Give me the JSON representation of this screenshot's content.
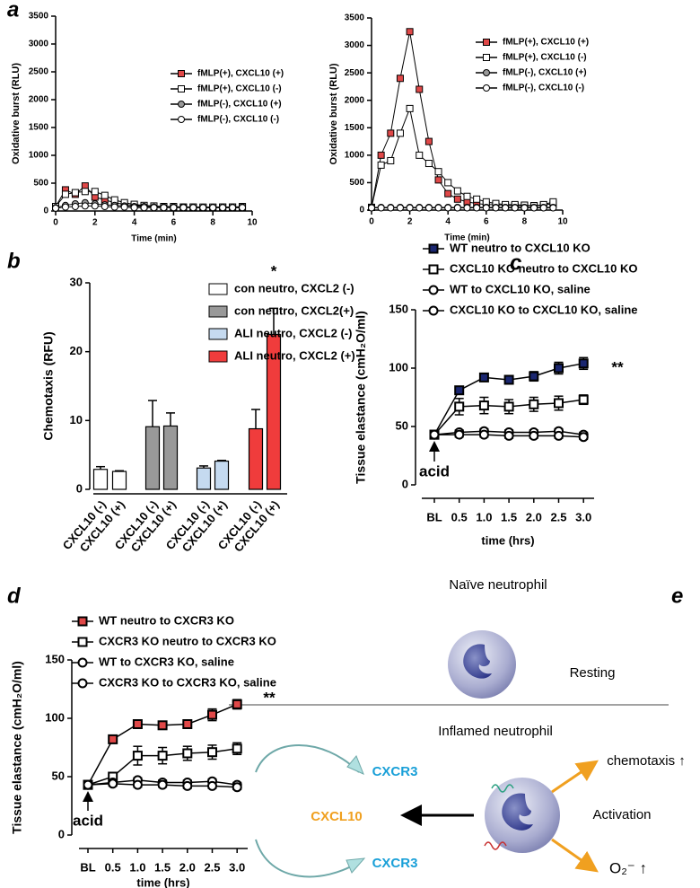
{
  "panel_labels": [
    "a",
    "b",
    "c",
    "d",
    "e"
  ],
  "chart_data": [
    {
      "type": "line",
      "xlabel": "Time (min)",
      "ylabel": "Oxidative burst (RLU)",
      "x": [
        0,
        0.5,
        1,
        1.5,
        2,
        2.5,
        3,
        3.5,
        4,
        4.5,
        5,
        5.5,
        6,
        6.5,
        7,
        7.5,
        8,
        8.5,
        9,
        9.5
      ],
      "xlim": [
        0,
        10
      ],
      "xticks": [
        0,
        2,
        4,
        6,
        8,
        10
      ],
      "ylim": [
        0,
        3500
      ],
      "yticks": [
        0,
        500,
        1000,
        1500,
        2000,
        2500,
        3000,
        3500
      ],
      "series": [
        {
          "name": "fMLP(+), CXCL10 (+)",
          "color": "#e04848",
          "marker": "square",
          "values": [
            80,
            380,
            300,
            450,
            250,
            200,
            150,
            120,
            100,
            90,
            80,
            80,
            70,
            70,
            70,
            60,
            60,
            70,
            70,
            80
          ]
        },
        {
          "name": "fMLP(+), CXCL10 (-)",
          "color": "#ffffff",
          "marker": "square",
          "values": [
            80,
            300,
            330,
            350,
            350,
            280,
            200,
            150,
            120,
            100,
            90,
            80,
            80,
            70,
            70,
            70,
            70,
            70,
            70,
            70
          ]
        },
        {
          "name": "fMLP(-), CXCL10 (+)",
          "color": "#999999",
          "marker": "circle",
          "values": [
            60,
            100,
            130,
            150,
            130,
            110,
            100,
            90,
            80,
            80,
            70,
            70,
            70,
            70,
            60,
            60,
            60,
            60,
            60,
            60
          ]
        },
        {
          "name": "fMLP(-), CXCL10 (-)",
          "color": "#ffffff",
          "marker": "circle",
          "values": [
            50,
            70,
            80,
            90,
            90,
            80,
            70,
            70,
            60,
            60,
            60,
            60,
            60,
            60,
            60,
            60,
            60,
            60,
            60,
            60
          ]
        }
      ]
    },
    {
      "type": "line",
      "xlabel": "Time (min)",
      "ylabel": "Oxidative burst (RLU)",
      "x": [
        0,
        0.5,
        1,
        1.5,
        2,
        2.5,
        3,
        3.5,
        4,
        4.5,
        5,
        5.5,
        6,
        6.5,
        7,
        7.5,
        8,
        8.5,
        9,
        9.5
      ],
      "xlim": [
        0,
        10
      ],
      "xticks": [
        0,
        2,
        4,
        6,
        8,
        10
      ],
      "ylim": [
        0,
        3500
      ],
      "yticks": [
        0,
        500,
        1000,
        1500,
        2000,
        2500,
        3000,
        3500
      ],
      "series": [
        {
          "name": "fMLP(+), CXCL10 (+)",
          "color": "#e04848",
          "marker": "square",
          "values": [
            50,
            1000,
            1400,
            2400,
            3250,
            2200,
            1250,
            550,
            300,
            200,
            150,
            120,
            100,
            100,
            90,
            80,
            80,
            80,
            90,
            120
          ]
        },
        {
          "name": "fMLP(+), CXCL10 (-)",
          "color": "#ffffff",
          "marker": "square",
          "values": [
            50,
            820,
            900,
            1400,
            1850,
            1000,
            850,
            700,
            500,
            350,
            250,
            200,
            150,
            120,
            100,
            100,
            90,
            80,
            100,
            150
          ]
        },
        {
          "name": "fMLP(-), CXCL10 (+)",
          "color": "#999999",
          "marker": "circle",
          "values": [
            50,
            50,
            50,
            50,
            50,
            50,
            50,
            50,
            50,
            50,
            50,
            50,
            50,
            50,
            50,
            50,
            50,
            50,
            50,
            50
          ]
        },
        {
          "name": "fMLP(-), CXCL10 (-)",
          "color": "#ffffff",
          "marker": "circle",
          "values": [
            40,
            40,
            40,
            40,
            40,
            40,
            40,
            40,
            40,
            40,
            40,
            40,
            40,
            40,
            40,
            40,
            40,
            40,
            40,
            40
          ]
        }
      ]
    },
    {
      "type": "bar",
      "ylabel": "Chemotaxis (RFU)",
      "categories": [
        "CXCL10 (-)",
        "CXCL10 (+)",
        "CXCL10 (-)",
        "CXCL10 (+)",
        "CXCL10 (-)",
        "CXCL10 (+)",
        "CXCL10 (-)",
        "CXCL10 (+)"
      ],
      "ylim": [
        0,
        30
      ],
      "yticks": [
        0,
        10,
        20,
        30
      ],
      "annotations": [
        "*"
      ],
      "series": [
        {
          "name": "con neutro, CXCL2 (-)",
          "color": "#ffffff",
          "values": [
            2.9,
            2.6,
            null,
            null,
            null,
            null,
            null,
            null
          ],
          "errors": [
            0.4,
            0.1,
            null,
            null,
            null,
            null,
            null,
            null
          ]
        },
        {
          "name": "con neutro, CXCL2(+)",
          "color": "#999999",
          "values": [
            null,
            null,
            9.1,
            9.2,
            null,
            null,
            null,
            null
          ],
          "errors": [
            null,
            null,
            3.8,
            1.9,
            null,
            null,
            null,
            null
          ]
        },
        {
          "name": "ALI neutro, CXCL2 (-)",
          "color": "#c5daf0",
          "values": [
            null,
            null,
            null,
            null,
            3.1,
            4.1,
            null,
            null
          ],
          "errors": [
            null,
            null,
            null,
            null,
            0.3,
            0.1,
            null,
            null
          ]
        },
        {
          "name": "ALI neutro, CXCL2 (+)",
          "color": "#f03c3c",
          "values": [
            null,
            null,
            null,
            null,
            null,
            null,
            8.8,
            22.5
          ],
          "errors": [
            null,
            null,
            null,
            null,
            null,
            null,
            2.8,
            3.8
          ]
        }
      ]
    },
    {
      "type": "line",
      "xlabel": "time (hrs)",
      "ylabel": "Tissue elastance (cmH₂O/ml)",
      "categories": [
        "BL",
        "0.5",
        "1.0",
        "1.5",
        "2.0",
        "2.5",
        "3.0"
      ],
      "ylim": [
        0,
        150
      ],
      "yticks": [
        0,
        50,
        100,
        150
      ],
      "annotations": [
        "**",
        "acid"
      ],
      "series": [
        {
          "name": "WT neutro to CXCL10 KO",
          "color": "#1a2670",
          "marker": "square",
          "values": [
            43,
            81,
            92,
            90,
            93,
            100,
            104
          ],
          "errors": [
            2,
            3,
            3,
            3,
            4,
            5,
            5
          ]
        },
        {
          "name": "CXCL10 KO neutro to CXCL10 KO",
          "color": "#ffffff",
          "marker": "square",
          "values": [
            43,
            67,
            68,
            67,
            69,
            70,
            73
          ],
          "errors": [
            2,
            7,
            7,
            6,
            6,
            6,
            4
          ]
        },
        {
          "name": "WT to CXCL10 KO, saline",
          "color": "#ffffff",
          "marker": "circle",
          "values": [
            43,
            45,
            46,
            45,
            45,
            46,
            43
          ],
          "errors": [
            2,
            2,
            2,
            2,
            2,
            2,
            2
          ]
        },
        {
          "name": "CXCL10 KO to CXCL10 KO, saline",
          "color": "#ffffff",
          "marker": "circle",
          "values": [
            43,
            43,
            43,
            42,
            42,
            42,
            41
          ],
          "errors": [
            2,
            2,
            2,
            2,
            2,
            2,
            2
          ]
        }
      ]
    },
    {
      "type": "line",
      "xlabel": "time (hrs)",
      "ylabel": "Tissue elastance (cmH₂O/ml)",
      "categories": [
        "BL",
        "0.5",
        "1.0",
        "1.5",
        "2.0",
        "2.5",
        "3.0"
      ],
      "ylim": [
        0,
        150
      ],
      "yticks": [
        0,
        50,
        100,
        150
      ],
      "annotations": [
        "**",
        "acid"
      ],
      "series": [
        {
          "name": "WT neutro to CXCR3 KO",
          "color": "#e04848",
          "marker": "square",
          "values": [
            43,
            82,
            95,
            94,
            95,
            103,
            112
          ],
          "errors": [
            2,
            3,
            3,
            3,
            3,
            5,
            4
          ]
        },
        {
          "name": "CXCR3 KO neutro to CXCR3  KO",
          "color": "#ffffff",
          "marker": "square",
          "values": [
            43,
            50,
            68,
            68,
            70,
            71,
            74
          ],
          "errors": [
            2,
            3,
            8,
            7,
            6,
            6,
            5
          ]
        },
        {
          "name": "WT to CXCR3 KO, saline",
          "color": "#ffffff",
          "marker": "circle",
          "values": [
            43,
            45,
            47,
            45,
            45,
            46,
            43
          ],
          "errors": [
            2,
            2,
            2,
            2,
            2,
            2,
            2
          ]
        },
        {
          "name": "CXCR3 KO to CXCR3 KO, saline",
          "color": "#ffffff",
          "marker": "circle",
          "values": [
            43,
            44,
            43,
            43,
            42,
            42,
            41
          ],
          "errors": [
            2,
            2,
            2,
            2,
            2,
            2,
            2
          ]
        }
      ]
    }
  ],
  "diagram": {
    "resting_title": "Naïve neutrophil",
    "resting_state": "Resting",
    "inflamed_title": "Inflamed neutrophil",
    "chemotaxis": "chemotaxis ↑",
    "receptor_top": "CXCR3",
    "ligand": "CXCL10",
    "activation": "Activation",
    "receptor_bottom": "CXCR3",
    "superoxide": "O₂⁻ ↑"
  }
}
